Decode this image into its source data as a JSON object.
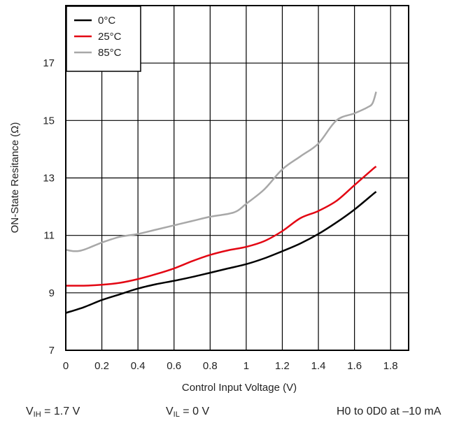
{
  "chart_data": {
    "type": "line",
    "xlabel": "Control Input Voltage (V)",
    "ylabel": "ON-State Resitance (Ω)",
    "xlim": [
      0,
      1.9
    ],
    "ylim": [
      7,
      19
    ],
    "x_ticks": [
      0,
      0.2,
      0.4,
      0.6,
      0.8,
      1,
      1.2,
      1.4,
      1.6,
      1.8
    ],
    "x_tick_labels": [
      "0",
      "0.2",
      "0.4",
      "0.6",
      "0.8",
      "1",
      "1.2",
      "1.4",
      "1.6",
      "1.8"
    ],
    "y_ticks": [
      7,
      9,
      11,
      13,
      15,
      17
    ],
    "y_tick_labels": [
      "7",
      "9",
      "11",
      "13",
      "15",
      "17"
    ],
    "grid": true,
    "legend_position": "top-left",
    "series": [
      {
        "name": "0°C",
        "color": "#000000",
        "x": [
          0,
          0.1,
          0.2,
          0.3,
          0.4,
          0.5,
          0.6,
          0.7,
          0.8,
          0.9,
          1.0,
          1.1,
          1.2,
          1.3,
          1.4,
          1.5,
          1.6,
          1.7,
          1.72
        ],
        "y": [
          8.3,
          8.5,
          8.75,
          8.95,
          9.15,
          9.3,
          9.42,
          9.55,
          9.7,
          9.85,
          10.0,
          10.2,
          10.45,
          10.72,
          11.05,
          11.45,
          11.9,
          12.42,
          12.52
        ]
      },
      {
        "name": "25°C",
        "color": "#e30613",
        "x": [
          0,
          0.1,
          0.2,
          0.3,
          0.4,
          0.5,
          0.6,
          0.7,
          0.8,
          0.9,
          1.0,
          1.1,
          1.2,
          1.3,
          1.4,
          1.5,
          1.6,
          1.7,
          1.72
        ],
        "y": [
          9.25,
          9.25,
          9.28,
          9.35,
          9.48,
          9.65,
          9.85,
          10.1,
          10.32,
          10.48,
          10.6,
          10.8,
          11.15,
          11.6,
          11.85,
          12.2,
          12.75,
          13.3,
          13.4
        ]
      },
      {
        "name": "85°C",
        "color": "#a8a8a8",
        "x": [
          0,
          0.05,
          0.1,
          0.2,
          0.3,
          0.4,
          0.5,
          0.6,
          0.7,
          0.8,
          0.9,
          0.95,
          1.0,
          1.1,
          1.2,
          1.3,
          1.4,
          1.5,
          1.6,
          1.67,
          1.7,
          1.72
        ],
        "y": [
          10.5,
          10.45,
          10.5,
          10.75,
          10.95,
          11.05,
          11.2,
          11.35,
          11.5,
          11.65,
          11.75,
          11.85,
          12.1,
          12.6,
          13.3,
          13.75,
          14.2,
          15.0,
          15.25,
          15.45,
          15.6,
          16.0
        ]
      }
    ]
  },
  "footer": {
    "vih": {
      "symbol": "V",
      "sub": "IH",
      "value": " = 1.7 V"
    },
    "vil": {
      "symbol": "V",
      "sub": "IL",
      "value": " = 0 V"
    },
    "condition": "H0 to 0D0 at –10 mA"
  }
}
